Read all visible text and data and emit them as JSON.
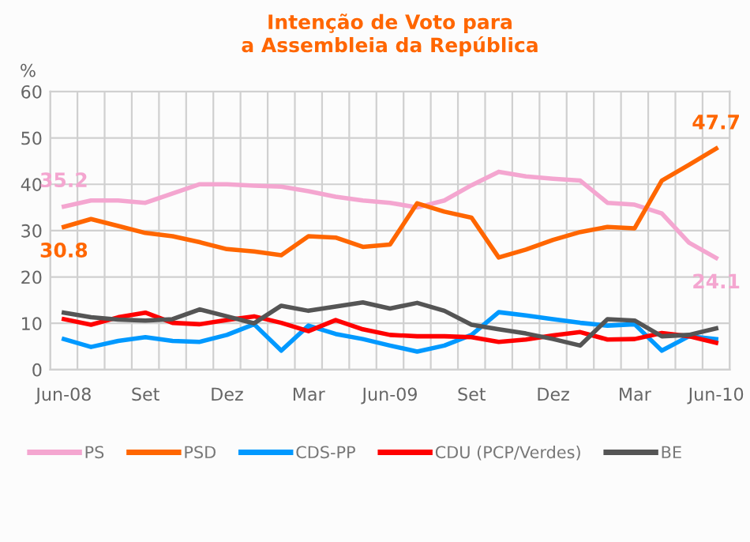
{
  "chart_data": {
    "type": "line",
    "title": "Intenção de Voto para\na Assembleia da República",
    "ylabel": "%",
    "categories": [
      "Jun-08",
      null,
      null,
      "Set",
      null,
      null,
      "Dez",
      null,
      null,
      "Mar",
      null,
      null,
      "Jun-09",
      null,
      null,
      "Set",
      null,
      null,
      "Dez",
      null,
      null,
      "Mar",
      null,
      null,
      "Jun-10"
    ],
    "series": [
      {
        "name": "PS",
        "color": "#f4a6d0",
        "values": [
          35.2,
          36.5,
          36.5,
          36,
          38,
          40,
          40,
          39.7,
          39.5,
          38.5,
          37.3,
          36.5,
          36,
          35,
          36.5,
          39.8,
          42.7,
          41.7,
          41.2,
          40.8,
          36,
          35.6,
          33.7,
          27.4,
          24.1
        ],
        "value_labels": [
          "35.2",
          null,
          null,
          null,
          null,
          null,
          null,
          null,
          null,
          null,
          null,
          null,
          null,
          null,
          null,
          null,
          null,
          null,
          null,
          null,
          null,
          null,
          null,
          null,
          "24.1"
        ]
      },
      {
        "name": "PSD",
        "color": "#ff6600",
        "values": [
          30.8,
          32.5,
          31,
          29.5,
          28.8,
          27.5,
          26,
          25.5,
          24.7,
          28.8,
          28.5,
          26.5,
          27,
          35.9,
          34.1,
          32.8,
          24.2,
          25.9,
          28,
          29.7,
          30.8,
          30.5,
          40.8,
          44.2,
          47.7
        ],
        "value_labels": [
          "30.8",
          null,
          null,
          null,
          null,
          null,
          null,
          null,
          null,
          null,
          null,
          null,
          null,
          null,
          null,
          null,
          null,
          null,
          null,
          null,
          null,
          null,
          null,
          null,
          "47.7"
        ]
      },
      {
        "name": "CDS-PP",
        "color": "#0099ff",
        "values": [
          6.6,
          4.9,
          6.2,
          7,
          6.2,
          6,
          7.5,
          9.8,
          4.1,
          9.5,
          7.7,
          6.6,
          5.2,
          3.9,
          5.2,
          7.5,
          12.4,
          11.7,
          10.9,
          10.1,
          9.5,
          9.8,
          4.1,
          7.2,
          6.6
        ]
      },
      {
        "name": "CDU (PCP/Verdes)",
        "color": "#ff0000",
        "values": [
          10.9,
          9.7,
          11.3,
          12.3,
          10.1,
          9.8,
          10.7,
          11.5,
          10.1,
          8.3,
          10.7,
          8.7,
          7.5,
          7.2,
          7.2,
          7,
          6,
          6.5,
          7.4,
          8.1,
          6.5,
          6.6,
          7.9,
          7.2,
          5.8
        ]
      },
      {
        "name": "BE",
        "color": "#555555",
        "values": [
          12.3,
          11.3,
          10.8,
          10.6,
          10.9,
          13,
          11.5,
          10,
          13.8,
          12.7,
          13.6,
          14.5,
          13.2,
          14.4,
          12.7,
          9.7,
          8.7,
          7.8,
          6.6,
          5.2,
          10.9,
          10.6,
          7.2,
          7.5,
          8.9
        ]
      }
    ],
    "ylim": [
      0,
      60
    ],
    "yticks": [
      0,
      10,
      20,
      30,
      40,
      50,
      60
    ],
    "grid": true,
    "legend": "bottom",
    "line_style": "solid",
    "marker": "none"
  }
}
